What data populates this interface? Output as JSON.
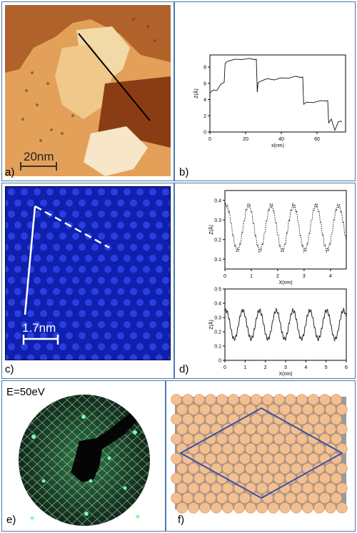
{
  "panels": {
    "a": {
      "label": "a)",
      "scalebar": "20nm"
    },
    "b": {
      "label": "b)"
    },
    "c": {
      "label": "c)",
      "scalebar": "1.7nm"
    },
    "d": {
      "label": "d)"
    },
    "e": {
      "label": "e)",
      "energy": "E=50eV"
    },
    "f": {
      "label": "f)"
    }
  },
  "colors": {
    "frame": "#4a79a8",
    "stm_bright": "#f5deb3",
    "stm_mid": "#d9883a",
    "stm_dark": "#7a3a10",
    "stm_blue": "#1a2ec8",
    "leed_green": "#3fe07a",
    "atom_orange": "#f2c090",
    "atom_grey": "#8a8a8a",
    "unit_cell": "#3b4fa0"
  },
  "chart_data": [
    {
      "type": "line",
      "panel": "b",
      "xlabel": "x(nm)",
      "ylabel": "Z(Å)",
      "xlim": [
        0,
        76
      ],
      "ylim": [
        0,
        9.5
      ],
      "xticks": [
        0,
        20,
        40,
        60
      ],
      "yticks": [
        0,
        2,
        4,
        6,
        8
      ],
      "x": [
        0,
        2,
        4,
        6,
        8,
        8.5,
        10,
        14,
        18,
        22,
        25,
        26,
        26.5,
        27,
        28,
        32,
        36,
        40,
        44,
        48,
        51,
        52,
        52.5,
        54,
        58,
        62,
        65,
        66,
        66.5,
        68,
        70,
        72,
        74
      ],
      "y": [
        4.9,
        5.1,
        5.2,
        5.8,
        6.2,
        8.4,
        8.8,
        8.9,
        9.0,
        9.0,
        9.0,
        8.9,
        5.0,
        6.0,
        6.3,
        6.5,
        6.5,
        6.6,
        6.7,
        6.8,
        6.8,
        6.7,
        3.5,
        3.6,
        3.7,
        3.8,
        3.9,
        3.8,
        1.2,
        1.5,
        0.3,
        1.2,
        1.4
      ]
    },
    {
      "type": "line",
      "panel": "d-top",
      "line_style": "dotted",
      "xlabel": "X(nm)",
      "ylabel": "Z(Å)",
      "xlim": [
        0,
        4.6
      ],
      "ylim": [
        0.05,
        0.45
      ],
      "xticks": [
        0,
        1,
        2,
        3,
        4
      ],
      "yticks": [
        0.1,
        0.2,
        0.3,
        0.4
      ],
      "period": 0.85,
      "amplitude": 0.115,
      "offset": 0.26
    },
    {
      "type": "line",
      "panel": "d-bottom",
      "line_style": "solid",
      "xlabel": "X(nm)",
      "ylabel": "Z(Å)",
      "xlim": [
        0,
        6
      ],
      "ylim": [
        0.0,
        0.5
      ],
      "xticks": [
        0,
        1,
        2,
        3,
        4,
        5,
        6
      ],
      "yticks": [
        0,
        0.1,
        0.2,
        0.3,
        0.4,
        0.5
      ],
      "period": 0.83,
      "amplitude": 0.1,
      "offset": 0.25
    }
  ]
}
